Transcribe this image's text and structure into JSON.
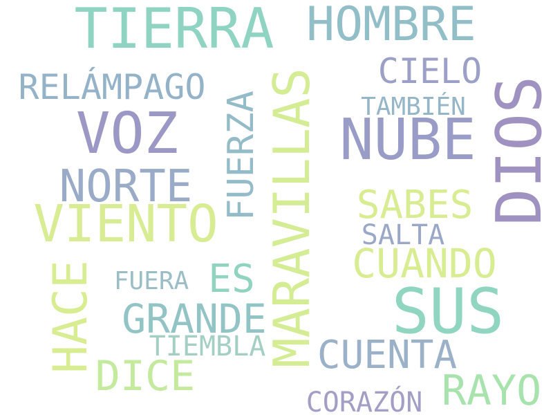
{
  "words": [
    {
      "text": "TIERRA",
      "color": "#8fd3c3"
    },
    {
      "text": "HOMBRE",
      "color": "#92bfc7"
    },
    {
      "text": "RELÁMPAGO",
      "color": "#94b3c8"
    },
    {
      "text": "CIELO",
      "color": "#9c9fc6"
    },
    {
      "text": "TAMBIÉN",
      "color": "#94b6c8"
    },
    {
      "text": "VOZ",
      "color": "#9b98c5"
    },
    {
      "text": "NUBE",
      "color": "#999cc6"
    },
    {
      "text": "MARAVILLAS",
      "color": "#d4ec94"
    },
    {
      "text": "FUERZA",
      "color": "#94bbc8"
    },
    {
      "text": "DIOS",
      "color": "#a092c0"
    },
    {
      "text": "NORTE",
      "color": "#9aabc8"
    },
    {
      "text": "VIENTO",
      "color": "#d7ec93"
    },
    {
      "text": "SABES",
      "color": "#d8ec92"
    },
    {
      "text": "SALTA",
      "color": "#9aa7c7"
    },
    {
      "text": "CUANDO",
      "color": "#d8ec92"
    },
    {
      "text": "HACE",
      "color": "#d8ec92"
    },
    {
      "text": "FUERA",
      "color": "#9bbdc6"
    },
    {
      "text": "ES",
      "color": "#8fd3c0"
    },
    {
      "text": "SUS",
      "color": "#8fd5bf"
    },
    {
      "text": "GRANDE",
      "color": "#92c3c5"
    },
    {
      "text": "TIEMBLA",
      "color": "#a3cfc4"
    },
    {
      "text": "CUENTA",
      "color": "#9ab1c8"
    },
    {
      "text": "DICE",
      "color": "#c4ea9e"
    },
    {
      "text": "RAYO",
      "color": "#a8e3ae"
    },
    {
      "text": "CORAZÓN",
      "color": "#a39ec5"
    }
  ]
}
